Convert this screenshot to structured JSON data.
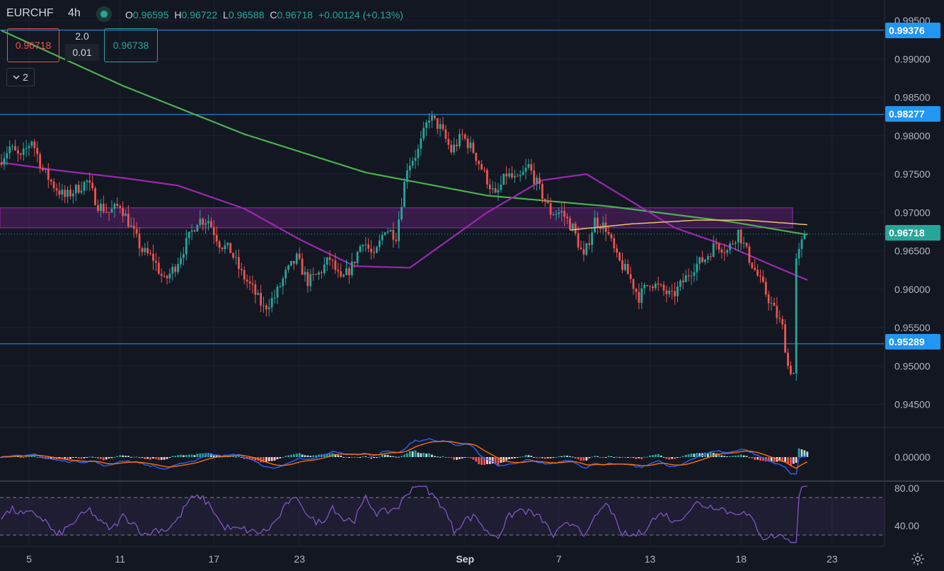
{
  "header": {
    "symbol": "EURCHF",
    "timeframe": "4h",
    "open_label": "O",
    "open": "0.96595",
    "high_label": "H",
    "high": "0.96722",
    "low_label": "L",
    "low": "0.96588",
    "close_label": "C",
    "close": "0.96718",
    "change": "+0.00124 (+0.13%)",
    "market_status": "open"
  },
  "trading": {
    "sell_price": "0.96718",
    "spread": "2.0",
    "quantity": "0.01",
    "buy_price": "0.96738"
  },
  "indicators_toggle": {
    "icon": "chevron-down-icon",
    "count": "2"
  },
  "price_scale": {
    "ticks": [
      "0.99500",
      "0.99000",
      "0.98500",
      "0.98000",
      "0.97500",
      "0.97000",
      "0.96500",
      "0.96000",
      "0.95500",
      "0.95000",
      "0.94500"
    ],
    "badges": [
      {
        "label": "0.99376",
        "color": "#2196f3"
      },
      {
        "label": "0.98277",
        "color": "#2196f3"
      },
      {
        "label": "0.96718",
        "color": "#26a69a"
      },
      {
        "label": "0.95289",
        "color": "#2196f3"
      }
    ]
  },
  "macd_scale": {
    "ticks": [
      "0.00000"
    ]
  },
  "rsi_scale": {
    "ticks": [
      "80.00",
      "40.00"
    ]
  },
  "time_axis": {
    "labels": [
      "5",
      "11",
      "17",
      "23",
      "Sep",
      "7",
      "13",
      "18",
      "23"
    ]
  },
  "colors": {
    "up": "#26a69a",
    "down": "#ef5350",
    "ma_green": "#4caf50",
    "ma_purple": "#9c27b0",
    "ma_yellow": "#f0c36d",
    "hline": "#2196f3",
    "zone": "#9c27b0",
    "rsi_line": "#7e57c2"
  },
  "settings_icon": "gear-icon",
  "chart_data": {
    "type": "candlestick",
    "symbol": "EURCHF",
    "interval": "4h",
    "price_range": [
      0.942,
      0.996
    ],
    "horizontal_lines": [
      0.99376,
      0.98277,
      0.95289
    ],
    "zone": [
      0.968,
      0.9706
    ],
    "last_price": 0.96718,
    "candle_path": [
      [
        0,
        0.9765
      ],
      [
        4,
        0.9785
      ],
      [
        8,
        0.977
      ],
      [
        12,
        0.9795
      ],
      [
        16,
        0.9755
      ],
      [
        20,
        0.9735
      ],
      [
        24,
        0.972
      ],
      [
        28,
        0.973
      ],
      [
        32,
        0.974
      ],
      [
        36,
        0.971
      ],
      [
        40,
        0.97
      ],
      [
        44,
        0.971
      ],
      [
        48,
        0.968
      ],
      [
        52,
        0.965
      ],
      [
        56,
        0.964
      ],
      [
        60,
        0.961
      ],
      [
        64,
        0.963
      ],
      [
        68,
        0.966
      ],
      [
        72,
        0.969
      ],
      [
        76,
        0.969
      ],
      [
        80,
        0.966
      ],
      [
        84,
        0.965
      ],
      [
        88,
        0.962
      ],
      [
        92,
        0.96
      ],
      [
        96,
        0.9575
      ],
      [
        100,
        0.959
      ],
      [
        104,
        0.962
      ],
      [
        108,
        0.964
      ],
      [
        112,
        0.961
      ],
      [
        116,
        0.962
      ],
      [
        120,
        0.964
      ],
      [
        124,
        0.961
      ],
      [
        128,
        0.963
      ],
      [
        132,
        0.9665
      ],
      [
        136,
        0.964
      ],
      [
        140,
        0.968
      ],
      [
        144,
        0.967
      ],
      [
        148,
        0.976
      ],
      [
        152,
        0.978
      ],
      [
        156,
        0.9825
      ],
      [
        160,
        0.981
      ],
      [
        164,
        0.978
      ],
      [
        168,
        0.98
      ],
      [
        172,
        0.978
      ],
      [
        176,
        0.975
      ],
      [
        180,
        0.972
      ],
      [
        184,
        0.975
      ],
      [
        188,
        0.974
      ],
      [
        192,
        0.976
      ],
      [
        196,
        0.973
      ],
      [
        200,
        0.97
      ],
      [
        204,
        0.97
      ],
      [
        208,
        0.968
      ],
      [
        212,
        0.964
      ],
      [
        216,
        0.969
      ],
      [
        220,
        0.968
      ],
      [
        224,
        0.964
      ],
      [
        228,
        0.962
      ],
      [
        232,
        0.959
      ],
      [
        236,
        0.961
      ],
      [
        240,
        0.96
      ],
      [
        244,
        0.959
      ],
      [
        248,
        0.961
      ],
      [
        252,
        0.963
      ],
      [
        256,
        0.964
      ],
      [
        260,
        0.966
      ],
      [
        264,
        0.965
      ],
      [
        268,
        0.9675
      ],
      [
        272,
        0.964
      ],
      [
        276,
        0.961
      ],
      [
        280,
        0.958
      ],
      [
        284,
        0.955
      ],
      [
        286,
        0.95
      ],
      [
        288,
        0.949
      ],
      [
        289,
        0.964
      ],
      [
        291,
        0.9665
      ],
      [
        292,
        0.9672
      ]
    ],
    "ma_green": [
      [
        0,
        0.9937
      ],
      [
        44,
        0.9865
      ],
      [
        88,
        0.9802
      ],
      [
        132,
        0.9752
      ],
      [
        176,
        0.9722
      ],
      [
        220,
        0.9708
      ],
      [
        264,
        0.9688
      ],
      [
        292,
        0.9671
      ]
    ],
    "ma_purple": [
      [
        0,
        0.9765
      ],
      [
        20,
        0.9755
      ],
      [
        44,
        0.9745
      ],
      [
        64,
        0.9735
      ],
      [
        88,
        0.9705
      ],
      [
        108,
        0.9665
      ],
      [
        128,
        0.963
      ],
      [
        148,
        0.9628
      ],
      [
        176,
        0.97
      ],
      [
        196,
        0.9742
      ],
      [
        212,
        0.975
      ],
      [
        228,
        0.9715
      ],
      [
        244,
        0.968
      ],
      [
        264,
        0.9655
      ],
      [
        280,
        0.963
      ],
      [
        292,
        0.9612
      ]
    ],
    "ma_yellow": [
      [
        206,
        0.9677
      ],
      [
        228,
        0.9685
      ],
      [
        252,
        0.969
      ],
      [
        270,
        0.969
      ],
      [
        292,
        0.9684
      ]
    ],
    "macd": {
      "zero": 0.0,
      "range": [
        -0.0055,
        0.0055
      ]
    },
    "rsi": {
      "levels": [
        70,
        30
      ],
      "ticks": [
        80,
        40
      ],
      "range": [
        18,
        86
      ]
    },
    "x_labels": [
      {
        "label": "5",
        "bar": 10
      },
      {
        "label": "11",
        "bar": 43
      },
      {
        "label": "17",
        "bar": 77
      },
      {
        "label": "23",
        "bar": 108
      },
      {
        "label": "Sep",
        "bar": 168
      },
      {
        "label": "7",
        "bar": 202
      },
      {
        "label": "13",
        "bar": 235
      },
      {
        "label": "18",
        "bar": 268
      },
      {
        "label": "23",
        "bar": 301
      }
    ]
  }
}
